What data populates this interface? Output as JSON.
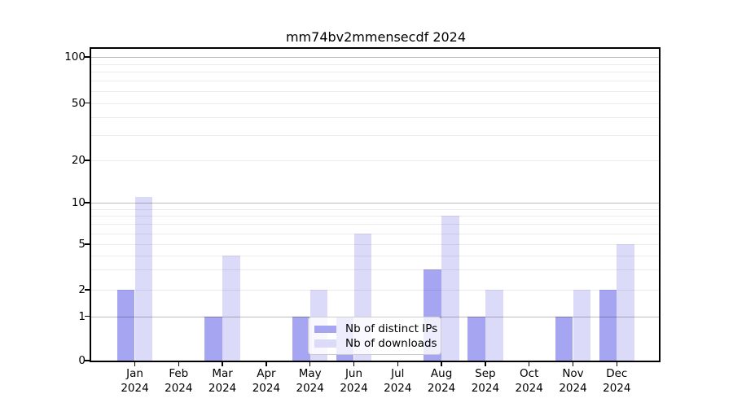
{
  "title": "mm74bv2mmensecdf 2024",
  "axes": {
    "y_tick_labels": [
      "0",
      "1",
      "2",
      "5",
      "10",
      "20",
      "50",
      "100"
    ],
    "x_year": "2024"
  },
  "legend": {
    "items": [
      {
        "label": "Nb of distinct IPs",
        "color": "#a5a5f2"
      },
      {
        "label": "Nb of downloads",
        "color": "#dbdbf9"
      }
    ]
  },
  "colors": {
    "distinct_ips": "#a5a5f2",
    "downloads": "#dbdbf9",
    "major_grid": "#bfbfbf",
    "minor_grid": "#ececec",
    "axis": "#000000"
  },
  "chart_data": {
    "type": "bar",
    "title": "mm74bv2mmensecdf 2024",
    "categories": [
      "Jan 2024",
      "Feb 2024",
      "Mar 2024",
      "Apr 2024",
      "May 2024",
      "Jun 2024",
      "Jul 2024",
      "Aug 2024",
      "Sep 2024",
      "Oct 2024",
      "Nov 2024",
      "Dec 2024"
    ],
    "series": [
      {
        "name": "Nb of distinct IPs",
        "color": "#a5a5f2",
        "values": [
          2,
          0,
          1,
          0,
          1,
          1,
          0,
          3,
          1,
          0,
          1,
          2
        ]
      },
      {
        "name": "Nb of downloads",
        "color": "#dbdbf9",
        "values": [
          11,
          0,
          4,
          0,
          2,
          6,
          0,
          8,
          2,
          0,
          2,
          5
        ]
      }
    ],
    "yticks": [
      0,
      1,
      2,
      5,
      10,
      20,
      50,
      100
    ],
    "yscale": "log-with-linear-zero",
    "ylim": [
      0,
      150
    ],
    "grid": "horizontal major and minor",
    "legend_position": "lower center"
  }
}
